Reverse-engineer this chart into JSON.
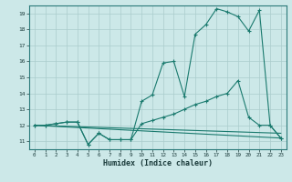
{
  "title": "",
  "xlabel": "Humidex (Indice chaleur)",
  "bg_color": "#cce8e8",
  "line_color": "#1a7a6e",
  "grid_color": "#aacccc",
  "xlim": [
    -0.5,
    23.5
  ],
  "ylim": [
    10.5,
    19.5
  ],
  "yticks": [
    11,
    12,
    13,
    14,
    15,
    16,
    17,
    18,
    19
  ],
  "xticks": [
    0,
    1,
    2,
    3,
    4,
    5,
    6,
    7,
    8,
    9,
    10,
    11,
    12,
    13,
    14,
    15,
    16,
    17,
    18,
    19,
    20,
    21,
    22,
    23
  ],
  "line1_x": [
    0,
    1,
    2,
    3,
    4,
    5,
    6,
    7,
    8,
    9,
    10,
    11,
    12,
    13,
    14,
    15,
    16,
    17,
    18,
    19,
    20,
    21,
    22,
    23
  ],
  "line1_y": [
    12.0,
    12.0,
    12.1,
    12.2,
    12.2,
    10.8,
    11.5,
    11.1,
    11.1,
    11.1,
    13.5,
    13.9,
    15.9,
    16.0,
    13.8,
    17.7,
    18.3,
    19.3,
    19.1,
    18.8,
    17.9,
    19.2,
    12.0,
    11.2
  ],
  "line2_x": [
    0,
    1,
    2,
    3,
    4,
    5,
    6,
    7,
    8,
    9,
    10,
    11,
    12,
    13,
    14,
    15,
    16,
    17,
    18,
    19,
    20,
    21,
    22,
    23
  ],
  "line2_y": [
    12.0,
    12.0,
    12.1,
    12.2,
    12.2,
    10.8,
    11.5,
    11.1,
    11.1,
    11.1,
    12.1,
    12.3,
    12.5,
    12.7,
    13.0,
    13.3,
    13.5,
    13.8,
    14.0,
    14.8,
    12.5,
    12.0,
    12.0,
    11.2
  ],
  "line3_x": [
    0,
    23
  ],
  "line3_y": [
    12.0,
    11.2
  ],
  "line4_x": [
    0,
    23
  ],
  "line4_y": [
    12.0,
    11.5
  ]
}
